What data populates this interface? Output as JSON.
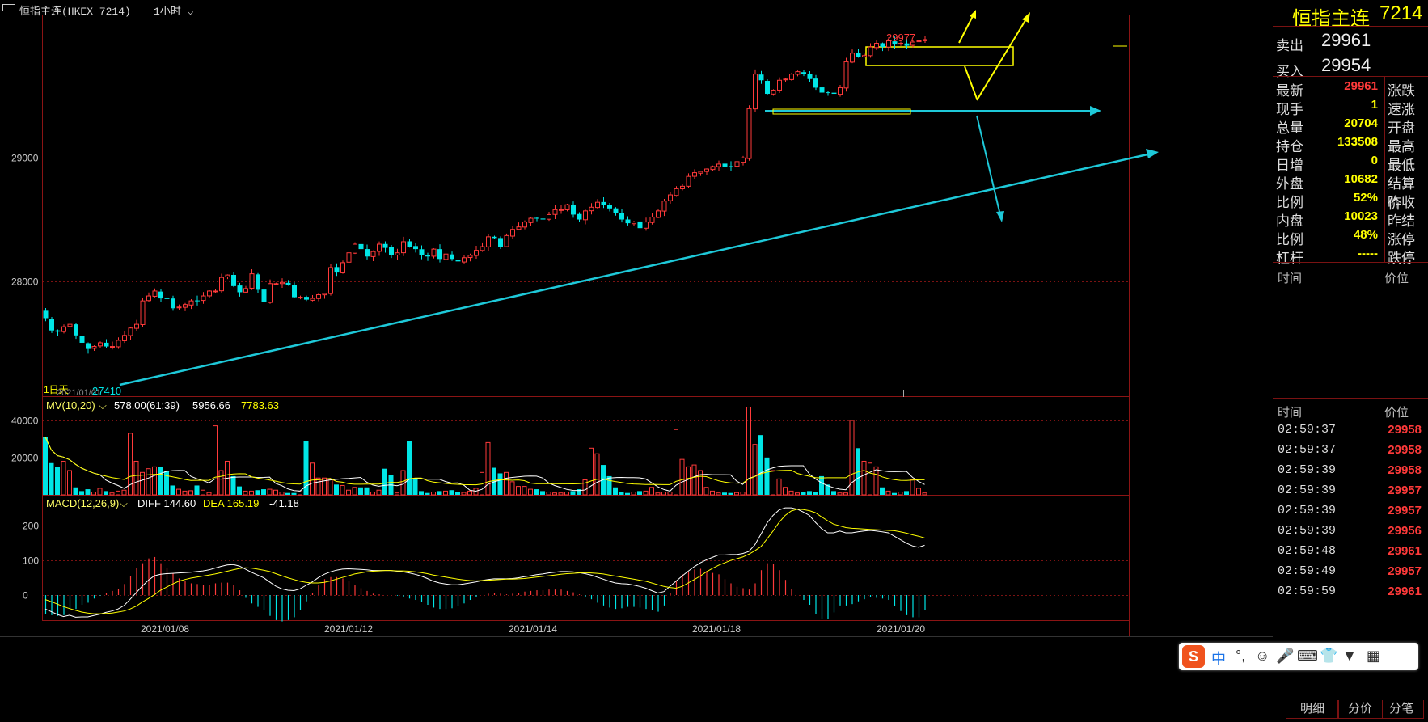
{
  "window": {
    "title": "恒指主连(HKEX 7214)",
    "period": "1小时"
  },
  "colors": {
    "up": "#ff3a3a",
    "down": "#00e6e6",
    "trend": "#1ec9d9",
    "annot": "#ffff00",
    "ma5": "#ffffff",
    "ma10": "#ffff00"
  },
  "price_axis": {
    "ticks": [
      "29000",
      "28000"
    ]
  },
  "price_panel": {
    "high_label": "29977",
    "low_label": "27410",
    "corner_label": "1日天",
    "corner_date": "2021/01/01"
  },
  "volume_panel": {
    "legend_name": "MV(10,20)",
    "legend_v1": "578.00(61:39)",
    "legend_v2": "5956.66",
    "legend_v3": "7783.63",
    "ticks": [
      "40000",
      "20000"
    ]
  },
  "macd_panel": {
    "legend_name": "MACD(12,26,9)",
    "legend_diff": "DIFF 144.60",
    "legend_dea": "DEA 165.19",
    "legend_macd": "-41.18",
    "ticks": [
      "200",
      "100",
      "0"
    ]
  },
  "x_axis": {
    "dates": [
      "2021/01/08",
      "2021/01/12",
      "2021/01/14",
      "2021/01/18",
      "2021/01/20"
    ]
  },
  "side": {
    "name": "恒指主连",
    "code": "7214",
    "sell_label": "卖出",
    "sell_price": "29961",
    "buy_label": "买入",
    "buy_price": "29954",
    "quote_rows": [
      {
        "label": "最新",
        "value": "29961",
        "label2": "涨跌"
      },
      {
        "label": "现手",
        "value": "1",
        "label2": "速涨"
      },
      {
        "label": "总量",
        "value": "20704",
        "label2": "开盘"
      },
      {
        "label": "持仓",
        "value": "133508",
        "label2": "最高"
      },
      {
        "label": "日增",
        "value": "0",
        "label2": "最低"
      },
      {
        "label": "外盘",
        "value": "10682",
        "label2": "结算价"
      },
      {
        "label": "比例",
        "value": "52%",
        "label2": "昨收"
      },
      {
        "label": "内盘",
        "value": "10023",
        "label2": "昨结"
      },
      {
        "label": "比例",
        "value": "48%",
        "label2": "涨停"
      },
      {
        "label": "杠杆",
        "value": "-----",
        "label2": "跌停"
      }
    ],
    "hdr_time": "时间",
    "hdr_price": "价位",
    "ticks_header_time": "时间",
    "ticks_header_price": "价位",
    "tick_rows": [
      {
        "time": "02:59:37",
        "price": "29958"
      },
      {
        "time": "02:59:37",
        "price": "29958"
      },
      {
        "time": "02:59:39",
        "price": "29958"
      },
      {
        "time": "02:59:39",
        "price": "29957"
      },
      {
        "time": "02:59:39",
        "price": "29957"
      },
      {
        "time": "02:59:39",
        "price": "29956"
      },
      {
        "time": "02:59:48",
        "price": "29961"
      },
      {
        "time": "02:59:49",
        "price": "29957"
      },
      {
        "time": "02:59:59",
        "price": "29961"
      }
    ],
    "tabs": [
      "明细",
      "分价",
      "分笔"
    ]
  },
  "ime": {
    "logo": "S",
    "mode": "中",
    "punct": "°,"
  },
  "chart_data": {
    "type": "candlestick",
    "price_range": [
      27080,
      30150
    ],
    "volume_range": [
      0,
      52000
    ],
    "macd_range": [
      -70,
      285
    ],
    "closes": [
      27700,
      27600,
      27590,
      27630,
      27650,
      27560,
      27500,
      27450,
      27470,
      27500,
      27470,
      27470,
      27520,
      27560,
      27620,
      27650,
      27840,
      27880,
      27920,
      27860,
      27860,
      27780,
      27790,
      27810,
      27840,
      27840,
      27880,
      27920,
      27920,
      28030,
      28050,
      27960,
      27910,
      27940,
      28060,
      27930,
      27830,
      27980,
      27980,
      27990,
      27970,
      27870,
      27870,
      27850,
      27860,
      27890,
      27900,
      28110,
      28070,
      28150,
      28230,
      28300,
      28260,
      28200,
      28240,
      28300,
      28270,
      28210,
      28230,
      28320,
      28280,
      28260,
      28210,
      28200,
      28260,
      28180,
      28220,
      28180,
      28160,
      28190,
      28210,
      28250,
      28280,
      28360,
      28350,
      28280,
      28370,
      28420,
      28440,
      28480,
      28510,
      28510,
      28500,
      28540,
      28580,
      28580,
      28620,
      28540,
      28500,
      28570,
      28600,
      28640,
      28620,
      28590,
      28550,
      28500,
      28470,
      28480,
      28430,
      28480,
      28520,
      28570,
      28650,
      28700,
      28750,
      28770,
      28850,
      28880,
      28890,
      28910,
      28930,
      28950,
      28930,
      28930,
      28970,
      29000,
      29400,
      29680,
      29630,
      29520,
      29550,
      29630,
      29640,
      29680,
      29700,
      29680,
      29640,
      29570,
      29530,
      29530,
      29520,
      29570,
      29780,
      29850,
      29820,
      29830,
      29900,
      29930,
      29900,
      29950,
      29920,
      29930,
      29910,
      29940,
      29950,
      29960
    ],
    "volumes": [
      31000,
      17000,
      15000,
      18000,
      13000,
      4000,
      2000,
      3000,
      1500,
      3500,
      2000,
      1000,
      2000,
      2500,
      33000,
      18000,
      12000,
      14000,
      15000,
      15000,
      13000,
      5000,
      3000,
      2000,
      2200,
      5000,
      2500,
      1200,
      37000,
      13000,
      18000,
      10000,
      4500,
      2000,
      2000,
      2500,
      3000,
      3000,
      2500,
      1500,
      1000,
      1000,
      1700,
      29000,
      17000,
      9000,
      9000,
      8000,
      5500,
      5000,
      2500,
      4000,
      4000,
      4000,
      1500,
      2500,
      14000,
      10500,
      1000,
      13000,
      29000,
      9000,
      2000,
      1000,
      1500,
      2000,
      2000,
      2500,
      1500,
      1300,
      2000,
      3500,
      12000,
      28000,
      14500,
      11500,
      12000,
      7000,
      4500,
      4500,
      3000,
      3000,
      2000,
      1500,
      1000,
      1000,
      1500,
      2000,
      3000,
      8000,
      25000,
      22000,
      16000,
      10000,
      4000,
      1500,
      1000,
      1500,
      2000,
      2000,
      4000,
      1000,
      1500,
      1500,
      35000,
      19000,
      15000,
      16000,
      13000,
      4000,
      2000,
      1000,
      1200,
      1000,
      1200,
      1500,
      47000,
      27000,
      32000,
      20000,
      13000,
      8500,
      4000,
      2000,
      1000,
      1500,
      2000,
      1500,
      10000,
      5500,
      2000,
      1000,
      1000,
      40000,
      25000,
      18000,
      17000,
      15000,
      4000,
      2000,
      1000,
      1500,
      2000,
      8000,
      3500,
      1000
    ],
    "dif": [
      -40,
      -48,
      -56,
      -62,
      -58,
      -64,
      -63,
      -63,
      -59,
      -55,
      -50,
      -46,
      -40,
      -30,
      -12,
      7,
      26,
      43,
      56,
      60,
      62,
      63,
      64,
      65,
      66,
      68,
      70,
      73,
      78,
      83,
      87,
      88,
      84,
      75,
      66,
      58,
      50,
      38,
      26,
      18,
      14,
      13,
      18,
      28,
      38,
      50,
      60,
      67,
      72,
      75,
      76,
      75,
      74,
      73,
      71,
      71,
      71,
      71,
      69,
      67,
      64,
      60,
      55,
      48,
      40,
      35,
      32,
      30,
      30,
      32,
      35,
      38,
      42,
      45,
      47,
      47,
      47,
      48,
      50,
      53,
      56,
      59,
      61,
      64,
      66,
      68,
      68,
      67,
      65,
      62,
      58,
      52,
      46,
      40,
      35,
      33,
      32,
      29,
      25,
      20,
      13,
      6,
      10,
      25,
      40,
      55,
      69,
      82,
      93,
      102,
      109,
      116,
      116,
      117,
      117,
      120,
      126,
      145,
      176,
      208,
      230,
      246,
      252,
      252,
      248,
      240,
      230,
      210,
      192,
      180,
      180,
      185,
      180,
      180,
      183,
      185,
      187,
      185,
      183,
      180,
      170,
      160,
      150,
      142,
      138,
      144
    ],
    "dea": [
      -13,
      -19,
      -26,
      -33,
      -39,
      -44,
      -49,
      -52,
      -54,
      -54,
      -53,
      -52,
      -49,
      -46,
      -40,
      -32,
      -20,
      -10,
      1,
      14,
      23,
      32,
      40,
      45,
      49,
      52,
      55,
      58,
      61,
      65,
      69,
      73,
      77,
      79,
      78,
      75,
      72,
      68,
      62,
      56,
      50,
      45,
      40,
      37,
      35,
      35,
      37,
      41,
      46,
      51,
      56,
      61,
      64,
      67,
      69,
      70,
      71,
      71,
      70,
      70,
      69,
      67,
      65,
      62,
      58,
      55,
      52,
      49,
      46,
      44,
      42,
      41,
      42,
      43,
      44,
      45,
      46,
      46,
      47,
      48,
      50,
      52,
      54,
      56,
      58,
      60,
      62,
      63,
      64,
      65,
      64,
      63,
      61,
      58,
      55,
      52,
      49,
      46,
      43,
      40,
      35,
      30,
      25,
      22,
      20,
      25,
      35,
      45,
      55,
      67,
      77,
      86,
      93,
      100,
      105,
      110,
      118,
      128,
      140,
      162,
      185,
      210,
      230,
      243,
      248,
      247,
      244,
      238,
      226,
      215,
      205,
      200,
      195,
      193,
      192,
      191,
      190,
      189,
      188,
      187,
      186,
      183,
      179,
      174,
      170,
      165
    ]
  }
}
